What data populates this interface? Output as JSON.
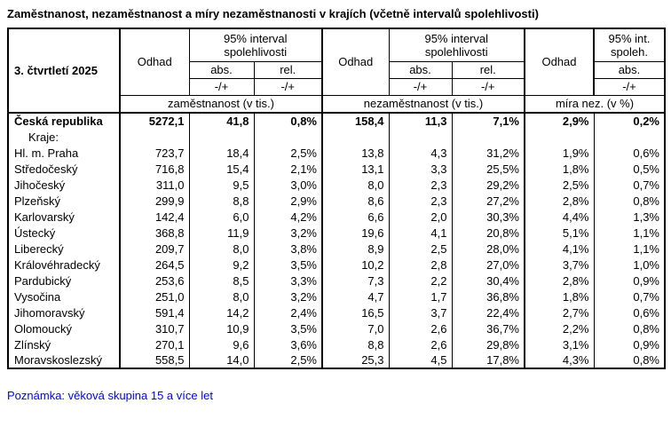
{
  "title": "Zaměstnanost, nezaměstnanost a míry nezaměstnanosti v krajích (včetně intervalů spolehlivosti)",
  "table": {
    "period": "3. čtvrtletí 2025",
    "header": {
      "odhad": "Odhad",
      "ci_full": "95% interval spolehlivosti",
      "ci_short": "95% int. spoleh.",
      "abs": "abs.",
      "rel": "rel.",
      "pm": "-/+",
      "group_employment": "zaměstnanost (v tis.)",
      "group_unemployment": "nezaměstnanost (v tis.)",
      "group_rate": "míra nez. (v %)"
    },
    "rows": [
      {
        "name": "Česká republika",
        "bold": true,
        "indent": false,
        "values": [
          "5272,1",
          "41,8",
          "0,8%",
          "158,4",
          "11,3",
          "7,1%",
          "2,9%",
          "0,2%"
        ]
      },
      {
        "name": "Kraje:",
        "bold": false,
        "indent": true,
        "values": [
          "",
          "",
          "",
          "",
          "",
          "",
          "",
          ""
        ]
      },
      {
        "name": "Hl. m. Praha",
        "bold": false,
        "indent": false,
        "values": [
          "723,7",
          "18,4",
          "2,5%",
          "13,8",
          "4,3",
          "31,2%",
          "1,9%",
          "0,6%"
        ]
      },
      {
        "name": "Středočeský",
        "bold": false,
        "indent": false,
        "values": [
          "716,8",
          "15,4",
          "2,1%",
          "13,1",
          "3,3",
          "25,5%",
          "1,8%",
          "0,5%"
        ]
      },
      {
        "name": "Jihočeský",
        "bold": false,
        "indent": false,
        "values": [
          "311,0",
          "9,5",
          "3,0%",
          "8,0",
          "2,3",
          "29,2%",
          "2,5%",
          "0,7%"
        ]
      },
      {
        "name": "Plzeňský",
        "bold": false,
        "indent": false,
        "values": [
          "299,9",
          "8,8",
          "2,9%",
          "8,6",
          "2,3",
          "27,2%",
          "2,8%",
          "0,8%"
        ]
      },
      {
        "name": "Karlovarský",
        "bold": false,
        "indent": false,
        "values": [
          "142,4",
          "6,0",
          "4,2%",
          "6,6",
          "2,0",
          "30,3%",
          "4,4%",
          "1,3%"
        ]
      },
      {
        "name": "Ústecký",
        "bold": false,
        "indent": false,
        "values": [
          "368,8",
          "11,9",
          "3,2%",
          "19,6",
          "4,1",
          "20,8%",
          "5,1%",
          "1,1%"
        ]
      },
      {
        "name": "Liberecký",
        "bold": false,
        "indent": false,
        "values": [
          "209,7",
          "8,0",
          "3,8%",
          "8,9",
          "2,5",
          "28,0%",
          "4,1%",
          "1,1%"
        ]
      },
      {
        "name": "Královéhradecký",
        "bold": false,
        "indent": false,
        "values": [
          "264,5",
          "9,2",
          "3,5%",
          "10,2",
          "2,8",
          "27,0%",
          "3,7%",
          "1,0%"
        ]
      },
      {
        "name": "Pardubický",
        "bold": false,
        "indent": false,
        "values": [
          "253,6",
          "8,5",
          "3,3%",
          "7,3",
          "2,2",
          "30,4%",
          "2,8%",
          "0,9%"
        ]
      },
      {
        "name": "Vysočina",
        "bold": false,
        "indent": false,
        "values": [
          "251,0",
          "8,0",
          "3,2%",
          "4,7",
          "1,7",
          "36,8%",
          "1,8%",
          "0,7%"
        ]
      },
      {
        "name": "Jihomoravský",
        "bold": false,
        "indent": false,
        "values": [
          "591,4",
          "14,2",
          "2,4%",
          "16,5",
          "3,7",
          "22,4%",
          "2,7%",
          "0,6%"
        ]
      },
      {
        "name": "Olomoucký",
        "bold": false,
        "indent": false,
        "values": [
          "310,7",
          "10,9",
          "3,5%",
          "7,0",
          "2,6",
          "36,7%",
          "2,2%",
          "0,8%"
        ]
      },
      {
        "name": "Zlínský",
        "bold": false,
        "indent": false,
        "values": [
          "270,1",
          "9,6",
          "3,6%",
          "8,8",
          "2,6",
          "29,8%",
          "3,1%",
          "0,9%"
        ]
      },
      {
        "name": "Moravskoslezský",
        "bold": false,
        "indent": false,
        "values": [
          "558,5",
          "14,0",
          "2,5%",
          "25,3",
          "4,5",
          "17,8%",
          "4,3%",
          "0,8%"
        ]
      }
    ]
  },
  "footnote": "Poznámka: věková skupina 15 a více let",
  "colors": {
    "footnote_blue": "#0000FF",
    "border": "#000000",
    "background": "#FFFFFF"
  }
}
